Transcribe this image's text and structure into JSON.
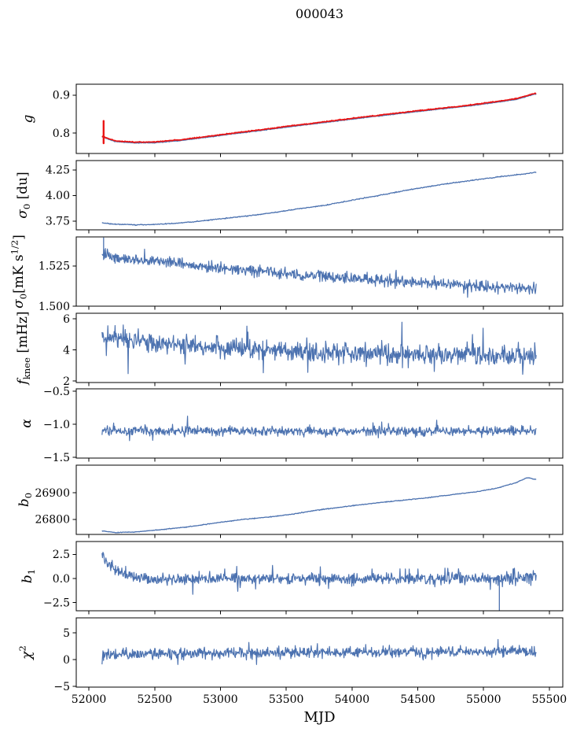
{
  "chart_data": {
    "type": "line",
    "title": "000043",
    "x_axis": {
      "label": "MJD",
      "lim": [
        51904,
        55602
      ],
      "ticks": [
        52000,
        52500,
        53000,
        53500,
        54000,
        54500,
        55000,
        55500
      ],
      "tick_labels": [
        "52000",
        "52500",
        "53000",
        "53500",
        "54000",
        "54500",
        "55000",
        "55500"
      ],
      "data_range": [
        52100,
        55400
      ]
    },
    "colors": {
      "blue": "#4c72b0",
      "red": "#ea1515",
      "axis": "#000000",
      "background": "#ffffff"
    },
    "panels": [
      {
        "name": "g",
        "ylabel_html": "<i>g</i>",
        "ylim": [
          0.746,
          0.929
        ],
        "yticks": [
          {
            "v": 0.8,
            "label": "0.8"
          },
          {
            "v": 0.9,
            "label": "0.9"
          }
        ],
        "series": [
          {
            "name": "g-data-line",
            "color": "blue",
            "seed": 11,
            "points": 760,
            "noise": 0.0007,
            "width": 1.4,
            "anchors": [
              [
                52100,
                0.79
              ],
              [
                52200,
                0.7775
              ],
              [
                52350,
                0.774
              ],
              [
                52500,
                0.7745
              ],
              [
                52700,
                0.7805
              ],
              [
                52900,
                0.789
              ],
              [
                53100,
                0.798
              ],
              [
                53300,
                0.8065
              ],
              [
                53500,
                0.8155
              ],
              [
                53700,
                0.824
              ],
              [
                53900,
                0.8325
              ],
              [
                54100,
                0.841
              ],
              [
                54300,
                0.849
              ],
              [
                54500,
                0.857
              ],
              [
                54700,
                0.8645
              ],
              [
                54900,
                0.872
              ],
              [
                55100,
                0.8815
              ],
              [
                55250,
                0.889
              ],
              [
                55350,
                0.899
              ],
              [
                55400,
                0.9035
              ]
            ]
          },
          {
            "name": "g-fit-line",
            "color": "red",
            "seed": 12,
            "points": 760,
            "noise": 0.0009,
            "width": 1.7,
            "anchors": [
              [
                52100,
                0.792
              ],
              [
                52200,
                0.7795
              ],
              [
                52350,
                0.776
              ],
              [
                52500,
                0.7765
              ],
              [
                52700,
                0.7825
              ],
              [
                52900,
                0.791
              ],
              [
                53100,
                0.8
              ],
              [
                53300,
                0.8085
              ],
              [
                53500,
                0.8175
              ],
              [
                53700,
                0.826
              ],
              [
                53900,
                0.8345
              ],
              [
                54100,
                0.843
              ],
              [
                54300,
                0.851
              ],
              [
                54500,
                0.859
              ],
              [
                54700,
                0.8665
              ],
              [
                54900,
                0.874
              ],
              [
                55100,
                0.8835
              ],
              [
                55250,
                0.891
              ],
              [
                55350,
                0.901
              ],
              [
                55400,
                0.9055
              ]
            ]
          }
        ],
        "vspikes": [
          {
            "x": 52112,
            "y0": 0.773,
            "y1": 0.832,
            "color": "red",
            "w": 2.4
          }
        ]
      },
      {
        "name": "sigma0-du",
        "ylabel_html": "<i>σ</i><sub>0</sub> [du]",
        "ylim": [
          3.665,
          4.342
        ],
        "yticks": [
          {
            "v": 3.75,
            "label": "3.75"
          },
          {
            "v": 4.0,
            "label": "4.00"
          },
          {
            "v": 4.25,
            "label": "4.25"
          }
        ],
        "series": [
          {
            "name": "sigma0-du-line",
            "color": "blue",
            "seed": 21,
            "points": 760,
            "noise": 0.0035,
            "width": 1.3,
            "anchors": [
              [
                52100,
                3.733
              ],
              [
                52200,
                3.72
              ],
              [
                52350,
                3.714
              ],
              [
                52500,
                3.718
              ],
              [
                52650,
                3.728
              ],
              [
                52800,
                3.744
              ],
              [
                53000,
                3.772
              ],
              [
                53200,
                3.8
              ],
              [
                53400,
                3.832
              ],
              [
                53600,
                3.872
              ],
              [
                53800,
                3.906
              ],
              [
                54000,
                3.955
              ],
              [
                54200,
                4.0
              ],
              [
                54400,
                4.048
              ],
              [
                54600,
                4.092
              ],
              [
                54800,
                4.13
              ],
              [
                55000,
                4.163
              ],
              [
                55150,
                4.188
              ],
              [
                55300,
                4.21
              ],
              [
                55400,
                4.228
              ]
            ]
          }
        ],
        "vspikes": []
      },
      {
        "name": "sigma0-mk",
        "ylabel_html": "<i>σ</i><sub>0</sub>[mK s<sup>1/2</sup>]",
        "ylim": [
          1.5,
          1.5431
        ],
        "yticks": [
          {
            "v": 1.5,
            "label": "1.500"
          },
          {
            "v": 1.525,
            "label": "1.525"
          }
        ],
        "series": [
          {
            "name": "sigma0-mk-line",
            "color": "blue",
            "seed": 31,
            "points": 900,
            "noise": 0.0028,
            "width": 1.2,
            "spike_prob": 0.008,
            "spike_amp": 0.005,
            "anchors": [
              [
                52100,
                1.5315
              ],
              [
                52300,
                1.5295
              ],
              [
                52600,
                1.527
              ],
              [
                53000,
                1.5235
              ],
              [
                53400,
                1.521
              ],
              [
                53800,
                1.5185
              ],
              [
                54200,
                1.5165
              ],
              [
                54600,
                1.5145
              ],
              [
                55000,
                1.5125
              ],
              [
                55200,
                1.5115
              ],
              [
                55400,
                1.5105
              ]
            ]
          }
        ],
        "vspikes": [
          {
            "x": 52112,
            "y0": 1.529,
            "y1": 1.5425,
            "color": "blue",
            "w": 1.3
          }
        ]
      },
      {
        "name": "fknee",
        "ylabel_html": "<i>f</i><sub>knee</sub> [mHz]",
        "ylim": [
          1.899,
          6.354
        ],
        "yticks": [
          {
            "v": 2,
            "label": "2"
          },
          {
            "v": 4,
            "label": "4"
          },
          {
            "v": 6,
            "label": "6"
          }
        ],
        "series": [
          {
            "name": "fknee-line",
            "color": "blue",
            "seed": 41,
            "points": 900,
            "noise": 0.5,
            "width": 1.2,
            "spike_prob": 0.02,
            "spike_amp": 1.0,
            "anchors": [
              [
                52100,
                4.85
              ],
              [
                52300,
                4.6
              ],
              [
                52600,
                4.35
              ],
              [
                53000,
                4.15
              ],
              [
                53500,
                3.95
              ],
              [
                54000,
                3.8
              ],
              [
                54500,
                3.7
              ],
              [
                55000,
                3.6
              ],
              [
                55400,
                3.6
              ]
            ]
          }
        ],
        "vspikes": []
      },
      {
        "name": "alpha",
        "ylabel_html": "<i>α</i>",
        "ylim": [
          -1.512,
          -0.464
        ],
        "yticks": [
          {
            "v": -1.5,
            "label": "−1.5"
          },
          {
            "v": -1.0,
            "label": "−1.0"
          },
          {
            "v": -0.5,
            "label": "−0.5"
          }
        ],
        "series": [
          {
            "name": "alpha-line",
            "color": "blue",
            "seed": 51,
            "points": 900,
            "noise": 0.055,
            "width": 1.2,
            "spike_prob": 0.012,
            "spike_amp": 0.13,
            "anchors": [
              [
                52100,
                -1.085
              ],
              [
                52400,
                -1.1
              ],
              [
                53500,
                -1.105
              ],
              [
                55400,
                -1.105
              ]
            ]
          }
        ],
        "vspikes": []
      },
      {
        "name": "b0",
        "ylabel_html": "<i>b</i><sub>0</sub>",
        "ylim": [
          26744,
          27003
        ],
        "yticks": [
          {
            "v": 26800,
            "label": "26800"
          },
          {
            "v": 26900,
            "label": "26900"
          }
        ],
        "series": [
          {
            "name": "b0-line",
            "color": "blue",
            "seed": 61,
            "points": 760,
            "noise": 1.1,
            "width": 1.3,
            "anchors": [
              [
                52100,
                26757
              ],
              [
                52200,
                26751
              ],
              [
                52350,
                26753
              ],
              [
                52550,
                26762
              ],
              [
                52750,
                26772
              ],
              [
                52950,
                26786
              ],
              [
                53150,
                26799
              ],
              [
                53350,
                26808
              ],
              [
                53550,
                26820
              ],
              [
                53750,
                26836
              ],
              [
                53950,
                26848
              ],
              [
                54150,
                26860
              ],
              [
                54350,
                26870
              ],
              [
                54550,
                26880
              ],
              [
                54750,
                26892
              ],
              [
                54950,
                26904
              ],
              [
                55100,
                26917
              ],
              [
                55250,
                26938
              ],
              [
                55330,
                26956
              ],
              [
                55400,
                26950
              ]
            ]
          }
        ],
        "vspikes": []
      },
      {
        "name": "b1",
        "ylabel_html": "<i>b</i><sub>1</sub>",
        "ylim": [
          -3.36,
          3.85
        ],
        "yticks": [
          {
            "v": -2.5,
            "label": "−2.5"
          },
          {
            "v": 0.0,
            "label": "0.0"
          },
          {
            "v": 2.5,
            "label": "2.5"
          }
        ],
        "series": [
          {
            "name": "b1-line",
            "color": "blue",
            "seed": 71,
            "points": 900,
            "noise": 0.42,
            "width": 1.2,
            "spike_prob": 0.02,
            "spike_amp": 0.9,
            "noise_ramp": {
              "from": 54900,
              "mult": 2.1
            },
            "anchors": [
              [
                52100,
                2.55
              ],
              [
                52150,
                1.5
              ],
              [
                52220,
                0.7
              ],
              [
                52320,
                0.15
              ],
              [
                52450,
                -0.1
              ],
              [
                52700,
                0.0
              ],
              [
                54000,
                -0.05
              ],
              [
                55000,
                0.0
              ],
              [
                55400,
                0.1
              ]
            ]
          }
        ],
        "vspikes": [
          {
            "x": 55120,
            "y0": 0.2,
            "y1": -3.28,
            "color": "blue",
            "w": 1.3
          }
        ]
      },
      {
        "name": "chi2",
        "ylabel_html": "<i>χ</i><sup>2</sup>",
        "ylim": [
          -5.147,
          7.794
        ],
        "yticks": [
          {
            "v": -5,
            "label": "−5"
          },
          {
            "v": 0,
            "label": "0"
          },
          {
            "v": 5,
            "label": "5"
          }
        ],
        "series": [
          {
            "name": "chi2-line",
            "color": "blue",
            "seed": 81,
            "points": 900,
            "noise": 0.8,
            "width": 1.2,
            "spike_prob": 0.015,
            "spike_amp": 1.4,
            "anchors": [
              [
                52100,
                0.95
              ],
              [
                52600,
                1.1
              ],
              [
                53200,
                1.2
              ],
              [
                54000,
                1.3
              ],
              [
                54800,
                1.4
              ],
              [
                55400,
                1.55
              ]
            ]
          }
        ],
        "vspikes": []
      }
    ]
  }
}
